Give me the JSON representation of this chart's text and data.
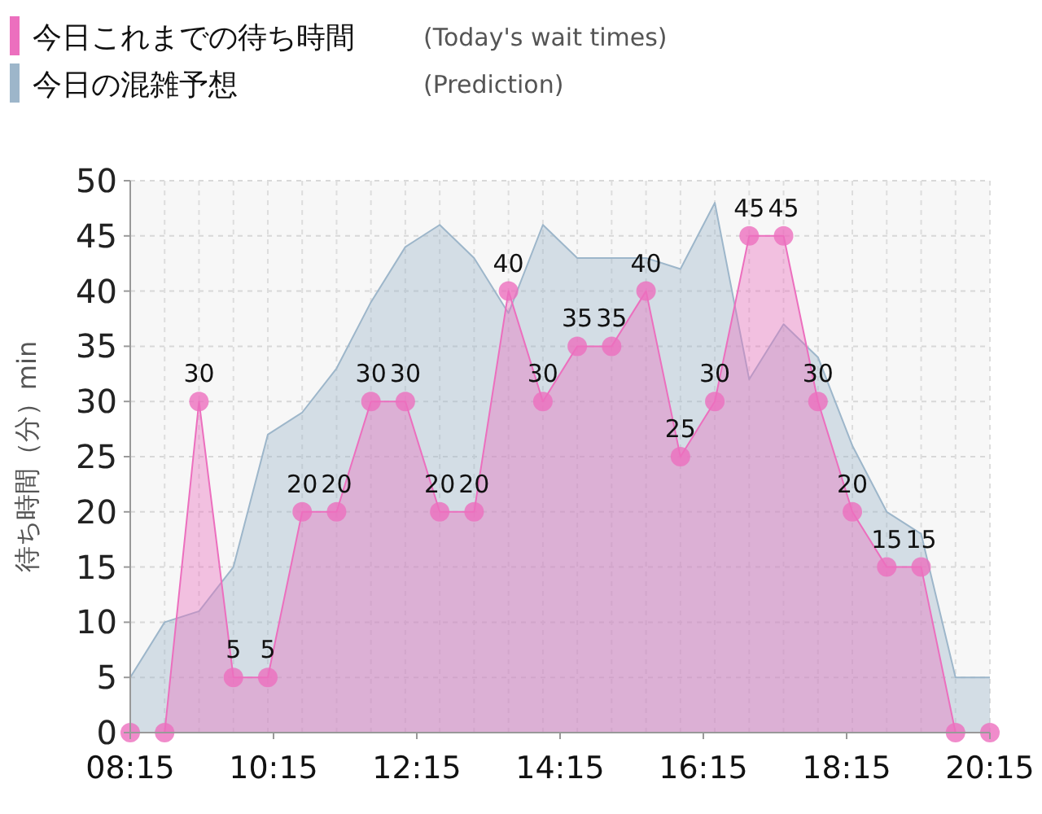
{
  "chart_data": {
    "type": "area",
    "ylabel": "待ち時間（分）min",
    "legend": "top left",
    "grid": true,
    "x": [
      8.25,
      8.73,
      9.21,
      9.69,
      10.17,
      10.65,
      11.13,
      11.61,
      12.09,
      12.57,
      13.05,
      13.53,
      14.01,
      14.49,
      14.97,
      15.45,
      15.93,
      16.41,
      16.89,
      17.37,
      17.85,
      18.33,
      18.81,
      19.29,
      19.77,
      20.25
    ],
    "xlim": [
      8.25,
      20.25
    ],
    "xticks": [
      {
        "value": 8.25,
        "label": "08:15"
      },
      {
        "value": 10.25,
        "label": "10:15"
      },
      {
        "value": 12.25,
        "label": "12:15"
      },
      {
        "value": 14.25,
        "label": "14:15"
      },
      {
        "value": 16.25,
        "label": "16:15"
      },
      {
        "value": 18.25,
        "label": "18:15"
      },
      {
        "value": 20.25,
        "label": "20:15"
      }
    ],
    "ylim": [
      0,
      50
    ],
    "yticks": [
      0,
      5,
      10,
      15,
      20,
      25,
      30,
      35,
      40,
      45,
      50
    ],
    "annotations": [
      "(Today's wait times)",
      "(Prediction)"
    ],
    "series": [
      {
        "name": "今日の混雑予想",
        "color": "#9db6ca",
        "marker": "none",
        "values": [
          5,
          10,
          11,
          15,
          27,
          29,
          33,
          39,
          44,
          46,
          43,
          38,
          46,
          43,
          43,
          43,
          42,
          48,
          32,
          37,
          34,
          26,
          20,
          18,
          5,
          5
        ]
      },
      {
        "name": "今日これまでの待ち時間",
        "color": "#ec6fbe",
        "marker": "circle",
        "values": [
          0,
          0,
          30,
          5,
          5,
          20,
          20,
          30,
          30,
          20,
          20,
          40,
          30,
          35,
          35,
          40,
          25,
          30,
          45,
          45,
          30,
          20,
          15,
          15,
          0,
          0
        ],
        "value_labels": [
          null,
          null,
          "30",
          "5",
          "5",
          "20",
          "20",
          "30",
          "30",
          "20",
          "20",
          "40",
          "30",
          "35",
          "35",
          "40",
          "25",
          "30",
          "45",
          "45",
          "30",
          "20",
          "15",
          "15",
          null,
          null
        ]
      }
    ]
  }
}
